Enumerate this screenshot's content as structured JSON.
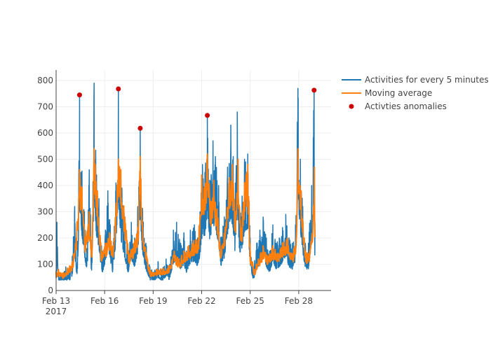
{
  "chart_data": {
    "type": "line",
    "title": "",
    "xlabel": "",
    "ylabel": "",
    "x_range_days": [
      "2017-02-13T00:00",
      "2017-03-02T00:00"
    ],
    "ylim": [
      0,
      840
    ],
    "x_tick_labels": [
      "Feb 13",
      "Feb 16",
      "Feb 19",
      "Feb 22",
      "Feb 25",
      "Feb 28"
    ],
    "x_tick_day_offsets": [
      0,
      3,
      6,
      9,
      12,
      15
    ],
    "x_year_label": "2017",
    "y_ticks": [
      0,
      100,
      200,
      300,
      400,
      500,
      600,
      700,
      800
    ],
    "colors": {
      "activities": "#1f77b4",
      "moving_average": "#ff7f0e",
      "anomalies": "#cc0000",
      "grid": "#eeeeee",
      "axis": "#444444"
    },
    "series": [
      {
        "name": "Activities for every 5 minutes",
        "style": "line",
        "peaks_day_value": [
          [
            0.0,
            75
          ],
          [
            0.05,
            260
          ],
          [
            0.15,
            60
          ],
          [
            0.4,
            65
          ],
          [
            0.6,
            90
          ],
          [
            0.85,
            75
          ],
          [
            1.0,
            130
          ],
          [
            1.15,
            320
          ],
          [
            1.3,
            90
          ],
          [
            1.45,
            745
          ],
          [
            1.6,
            455
          ],
          [
            1.75,
            300
          ],
          [
            1.9,
            160
          ],
          [
            2.05,
            460
          ],
          [
            2.2,
            120
          ],
          [
            2.35,
            790
          ],
          [
            2.5,
            440
          ],
          [
            2.65,
            350
          ],
          [
            2.85,
            150
          ],
          [
            3.05,
            230
          ],
          [
            3.2,
            380
          ],
          [
            3.35,
            250
          ],
          [
            3.5,
            150
          ],
          [
            3.7,
            410
          ],
          [
            3.85,
            770
          ],
          [
            4.0,
            440
          ],
          [
            4.2,
            300
          ],
          [
            4.45,
            150
          ],
          [
            4.65,
            260
          ],
          [
            4.85,
            200
          ],
          [
            5.05,
            320
          ],
          [
            5.2,
            615
          ],
          [
            5.35,
            300
          ],
          [
            5.55,
            180
          ],
          [
            5.8,
            90
          ],
          [
            6.05,
            70
          ],
          [
            6.3,
            110
          ],
          [
            6.55,
            80
          ],
          [
            6.8,
            120
          ],
          [
            7.0,
            90
          ],
          [
            7.25,
            230
          ],
          [
            7.45,
            260
          ],
          [
            7.7,
            180
          ],
          [
            7.9,
            220
          ],
          [
            8.05,
            150
          ],
          [
            8.3,
            230
          ],
          [
            8.55,
            250
          ],
          [
            8.75,
            200
          ],
          [
            8.9,
            300
          ],
          [
            9.05,
            480
          ],
          [
            9.2,
            450
          ],
          [
            9.35,
            660
          ],
          [
            9.5,
            420
          ],
          [
            9.7,
            570
          ],
          [
            9.85,
            510
          ],
          [
            10.05,
            400
          ],
          [
            10.2,
            200
          ],
          [
            10.4,
            280
          ],
          [
            10.6,
            470
          ],
          [
            10.8,
            630
          ],
          [
            10.95,
            510
          ],
          [
            11.05,
            330
          ],
          [
            11.2,
            680
          ],
          [
            11.35,
            300
          ],
          [
            11.5,
            360
          ],
          [
            11.65,
            500
          ],
          [
            11.85,
            520
          ],
          [
            12.0,
            200
          ],
          [
            12.2,
            90
          ],
          [
            12.4,
            180
          ],
          [
            12.6,
            230
          ],
          [
            12.8,
            280
          ],
          [
            13.0,
            200
          ],
          [
            13.2,
            150
          ],
          [
            13.4,
            250
          ],
          [
            13.6,
            180
          ],
          [
            13.8,
            200
          ],
          [
            14.0,
            240
          ],
          [
            14.2,
            290
          ],
          [
            14.4,
            200
          ],
          [
            14.6,
            180
          ],
          [
            14.8,
            250
          ],
          [
            14.95,
            770
          ],
          [
            15.1,
            500
          ],
          [
            15.25,
            320
          ],
          [
            15.4,
            180
          ],
          [
            15.6,
            180
          ],
          [
            15.8,
            400
          ],
          [
            15.95,
            760
          ],
          [
            16.0,
            260
          ]
        ]
      },
      {
        "name": "Moving average",
        "style": "line",
        "peaks_day_value": [
          [
            0.0,
            70
          ],
          [
            0.15,
            80
          ],
          [
            0.4,
            65
          ],
          [
            0.7,
            85
          ],
          [
            1.0,
            110
          ],
          [
            1.25,
            200
          ],
          [
            1.45,
            460
          ],
          [
            1.6,
            390
          ],
          [
            1.8,
            200
          ],
          [
            2.05,
            300
          ],
          [
            2.2,
            140
          ],
          [
            2.35,
            540
          ],
          [
            2.55,
            380
          ],
          [
            2.8,
            150
          ],
          [
            3.05,
            180
          ],
          [
            3.3,
            220
          ],
          [
            3.55,
            160
          ],
          [
            3.85,
            500
          ],
          [
            4.0,
            460
          ],
          [
            4.25,
            280
          ],
          [
            4.5,
            140
          ],
          [
            4.8,
            180
          ],
          [
            5.05,
            240
          ],
          [
            5.2,
            510
          ],
          [
            5.35,
            240
          ],
          [
            5.6,
            130
          ],
          [
            5.85,
            75
          ],
          [
            6.2,
            80
          ],
          [
            6.6,
            85
          ],
          [
            7.0,
            95
          ],
          [
            7.3,
            150
          ],
          [
            7.6,
            120
          ],
          [
            7.9,
            150
          ],
          [
            8.2,
            170
          ],
          [
            8.5,
            190
          ],
          [
            8.8,
            200
          ],
          [
            9.0,
            440
          ],
          [
            9.15,
            390
          ],
          [
            9.35,
            520
          ],
          [
            9.55,
            340
          ],
          [
            9.75,
            420
          ],
          [
            9.95,
            310
          ],
          [
            10.2,
            150
          ],
          [
            10.45,
            240
          ],
          [
            10.7,
            430
          ],
          [
            10.9,
            480
          ],
          [
            11.1,
            260
          ],
          [
            11.25,
            500
          ],
          [
            11.45,
            230
          ],
          [
            11.65,
            410
          ],
          [
            11.85,
            480
          ],
          [
            12.0,
            150
          ],
          [
            12.25,
            80
          ],
          [
            12.5,
            120
          ],
          [
            12.8,
            170
          ],
          [
            13.1,
            130
          ],
          [
            13.4,
            170
          ],
          [
            13.7,
            140
          ],
          [
            14.0,
            180
          ],
          [
            14.3,
            200
          ],
          [
            14.6,
            140
          ],
          [
            14.85,
            200
          ],
          [
            14.95,
            540
          ],
          [
            15.15,
            380
          ],
          [
            15.4,
            150
          ],
          [
            15.65,
            140
          ],
          [
            15.9,
            300
          ],
          [
            15.97,
            470
          ],
          [
            16.0,
            210
          ]
        ]
      },
      {
        "name": "Activties anomalies",
        "style": "markers",
        "points_day_value": [
          [
            1.45,
            745
          ],
          [
            3.85,
            768
          ],
          [
            5.2,
            618
          ],
          [
            9.35,
            667
          ],
          [
            15.95,
            763
          ]
        ]
      }
    ]
  }
}
